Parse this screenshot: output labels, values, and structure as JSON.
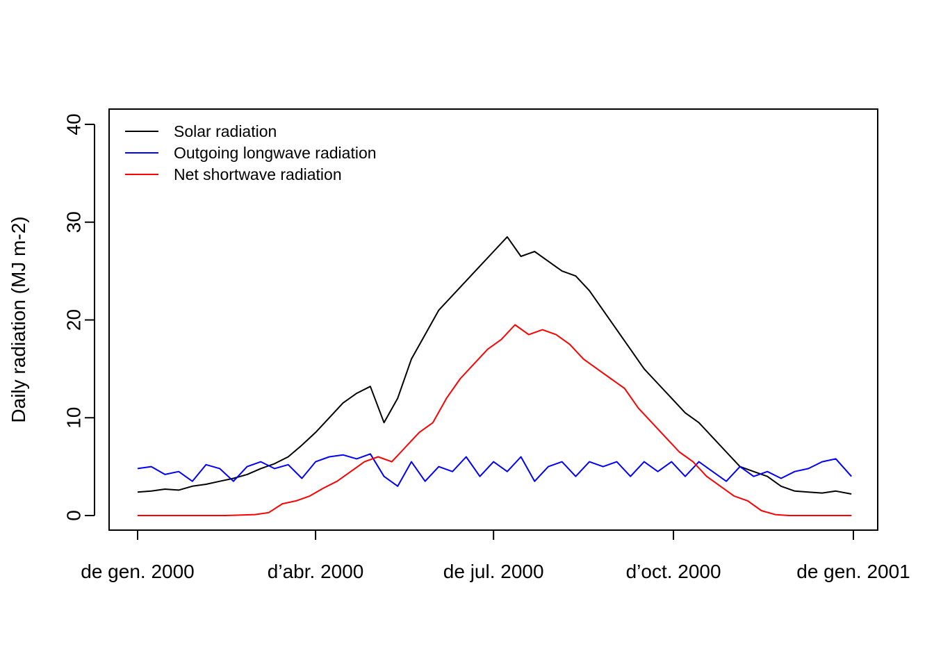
{
  "chart_data": {
    "type": "line",
    "title": "",
    "xlabel": "",
    "ylabel": "Daily radiation (MJ m-2)",
    "x_ticks": [
      {
        "label": "de gen. 2000",
        "date": "2000-01-01"
      },
      {
        "label": "d’abr. 2000",
        "date": "2000-04-01"
      },
      {
        "label": "de jul. 2000",
        "date": "2000-07-01"
      },
      {
        "label": "d’oct. 2000",
        "date": "2000-10-01"
      },
      {
        "label": "de gen. 2001",
        "date": "2001-01-01"
      }
    ],
    "y_ticks": [
      0,
      10,
      20,
      30,
      40
    ],
    "xlim": [
      "2000-01-01",
      "2000-12-31"
    ],
    "ylim": [
      0,
      40
    ],
    "grid": false,
    "legend": "top-left",
    "series": [
      {
        "name": "Solar radiation",
        "color": "#000000",
        "points": [
          [
            "2000-01-01",
            2.4
          ],
          [
            "2000-01-08",
            2.5
          ],
          [
            "2000-01-15",
            2.7
          ],
          [
            "2000-01-22",
            2.6
          ],
          [
            "2000-01-29",
            3.0
          ],
          [
            "2000-02-05",
            3.2
          ],
          [
            "2000-02-12",
            3.5
          ],
          [
            "2000-02-19",
            3.8
          ],
          [
            "2000-02-26",
            4.2
          ],
          [
            "2000-03-04",
            4.8
          ],
          [
            "2000-03-11",
            5.3
          ],
          [
            "2000-03-18",
            6.0
          ],
          [
            "2000-03-25",
            7.2
          ],
          [
            "2000-04-01",
            8.5
          ],
          [
            "2000-04-08",
            10.0
          ],
          [
            "2000-04-15",
            11.5
          ],
          [
            "2000-04-22",
            12.5
          ],
          [
            "2000-04-29",
            13.2
          ],
          [
            "2000-05-06",
            9.5
          ],
          [
            "2000-05-13",
            12.0
          ],
          [
            "2000-05-20",
            16.0
          ],
          [
            "2000-05-27",
            18.5
          ],
          [
            "2000-06-03",
            21.0
          ],
          [
            "2000-06-10",
            22.5
          ],
          [
            "2000-06-17",
            24.0
          ],
          [
            "2000-06-24",
            25.5
          ],
          [
            "2000-07-01",
            27.0
          ],
          [
            "2000-07-08",
            28.5
          ],
          [
            "2000-07-15",
            26.5
          ],
          [
            "2000-07-22",
            27.0
          ],
          [
            "2000-07-29",
            26.0
          ],
          [
            "2000-08-05",
            25.0
          ],
          [
            "2000-08-12",
            24.5
          ],
          [
            "2000-08-19",
            23.0
          ],
          [
            "2000-08-26",
            21.0
          ],
          [
            "2000-09-02",
            19.0
          ],
          [
            "2000-09-09",
            17.0
          ],
          [
            "2000-09-16",
            15.0
          ],
          [
            "2000-09-23",
            13.5
          ],
          [
            "2000-09-30",
            12.0
          ],
          [
            "2000-10-07",
            10.5
          ],
          [
            "2000-10-14",
            9.5
          ],
          [
            "2000-10-21",
            8.0
          ],
          [
            "2000-10-28",
            6.5
          ],
          [
            "2000-11-04",
            5.0
          ],
          [
            "2000-11-11",
            4.5
          ],
          [
            "2000-11-18",
            4.0
          ],
          [
            "2000-11-25",
            3.0
          ],
          [
            "2000-12-02",
            2.5
          ],
          [
            "2000-12-09",
            2.4
          ],
          [
            "2000-12-16",
            2.3
          ],
          [
            "2000-12-23",
            2.5
          ],
          [
            "2000-12-31",
            2.2
          ]
        ]
      },
      {
        "name": "Outgoing longwave radiation",
        "color": "#0000ff",
        "points": [
          [
            "2000-01-01",
            4.8
          ],
          [
            "2000-01-08",
            5.0
          ],
          [
            "2000-01-15",
            4.2
          ],
          [
            "2000-01-22",
            4.5
          ],
          [
            "2000-01-29",
            3.5
          ],
          [
            "2000-02-05",
            5.2
          ],
          [
            "2000-02-12",
            4.8
          ],
          [
            "2000-02-19",
            3.5
          ],
          [
            "2000-02-26",
            5.0
          ],
          [
            "2000-03-04",
            5.5
          ],
          [
            "2000-03-11",
            4.8
          ],
          [
            "2000-03-18",
            5.2
          ],
          [
            "2000-03-25",
            3.8
          ],
          [
            "2000-04-01",
            5.5
          ],
          [
            "2000-04-08",
            6.0
          ],
          [
            "2000-04-15",
            6.2
          ],
          [
            "2000-04-22",
            5.8
          ],
          [
            "2000-04-29",
            6.3
          ],
          [
            "2000-05-06",
            4.0
          ],
          [
            "2000-05-13",
            3.0
          ],
          [
            "2000-05-20",
            5.5
          ],
          [
            "2000-05-27",
            3.5
          ],
          [
            "2000-06-03",
            5.0
          ],
          [
            "2000-06-10",
            4.5
          ],
          [
            "2000-06-17",
            6.0
          ],
          [
            "2000-06-24",
            4.0
          ],
          [
            "2000-07-01",
            5.5
          ],
          [
            "2000-07-08",
            4.5
          ],
          [
            "2000-07-15",
            6.0
          ],
          [
            "2000-07-22",
            3.5
          ],
          [
            "2000-07-29",
            5.0
          ],
          [
            "2000-08-05",
            5.5
          ],
          [
            "2000-08-12",
            4.0
          ],
          [
            "2000-08-19",
            5.5
          ],
          [
            "2000-08-26",
            5.0
          ],
          [
            "2000-09-02",
            5.5
          ],
          [
            "2000-09-09",
            4.0
          ],
          [
            "2000-09-16",
            5.5
          ],
          [
            "2000-09-23",
            4.5
          ],
          [
            "2000-09-30",
            5.5
          ],
          [
            "2000-10-07",
            4.0
          ],
          [
            "2000-10-14",
            5.5
          ],
          [
            "2000-10-21",
            4.5
          ],
          [
            "2000-10-28",
            3.5
          ],
          [
            "2000-11-04",
            5.0
          ],
          [
            "2000-11-11",
            4.0
          ],
          [
            "2000-11-18",
            4.5
          ],
          [
            "2000-11-25",
            3.8
          ],
          [
            "2000-12-02",
            4.5
          ],
          [
            "2000-12-09",
            4.8
          ],
          [
            "2000-12-16",
            5.5
          ],
          [
            "2000-12-23",
            5.8
          ],
          [
            "2000-12-31",
            4.0
          ]
        ]
      },
      {
        "name": "Net shortwave radiation",
        "color": "#ff0000",
        "points": [
          [
            "2000-01-01",
            0
          ],
          [
            "2000-02-15",
            0
          ],
          [
            "2000-03-01",
            0.1
          ],
          [
            "2000-03-08",
            0.3
          ],
          [
            "2000-03-15",
            1.2
          ],
          [
            "2000-03-22",
            1.5
          ],
          [
            "2000-03-29",
            2.0
          ],
          [
            "2000-04-05",
            2.8
          ],
          [
            "2000-04-12",
            3.5
          ],
          [
            "2000-04-19",
            4.5
          ],
          [
            "2000-04-26",
            5.5
          ],
          [
            "2000-05-03",
            6.0
          ],
          [
            "2000-05-10",
            5.5
          ],
          [
            "2000-05-17",
            7.0
          ],
          [
            "2000-05-24",
            8.5
          ],
          [
            "2000-05-31",
            9.5
          ],
          [
            "2000-06-07",
            12.0
          ],
          [
            "2000-06-14",
            14.0
          ],
          [
            "2000-06-21",
            15.5
          ],
          [
            "2000-06-28",
            17.0
          ],
          [
            "2000-07-05",
            18.0
          ],
          [
            "2000-07-12",
            19.5
          ],
          [
            "2000-07-19",
            18.5
          ],
          [
            "2000-07-26",
            19.0
          ],
          [
            "2000-08-02",
            18.5
          ],
          [
            "2000-08-09",
            17.5
          ],
          [
            "2000-08-16",
            16.0
          ],
          [
            "2000-08-23",
            15.0
          ],
          [
            "2000-08-30",
            14.0
          ],
          [
            "2000-09-06",
            13.0
          ],
          [
            "2000-09-13",
            11.0
          ],
          [
            "2000-09-20",
            9.5
          ],
          [
            "2000-09-27",
            8.0
          ],
          [
            "2000-10-04",
            6.5
          ],
          [
            "2000-10-11",
            5.5
          ],
          [
            "2000-10-18",
            4.0
          ],
          [
            "2000-10-25",
            3.0
          ],
          [
            "2000-11-01",
            2.0
          ],
          [
            "2000-11-08",
            1.5
          ],
          [
            "2000-11-15",
            0.5
          ],
          [
            "2000-11-22",
            0.1
          ],
          [
            "2000-11-29",
            0
          ],
          [
            "2000-12-31",
            0
          ]
        ]
      }
    ]
  }
}
